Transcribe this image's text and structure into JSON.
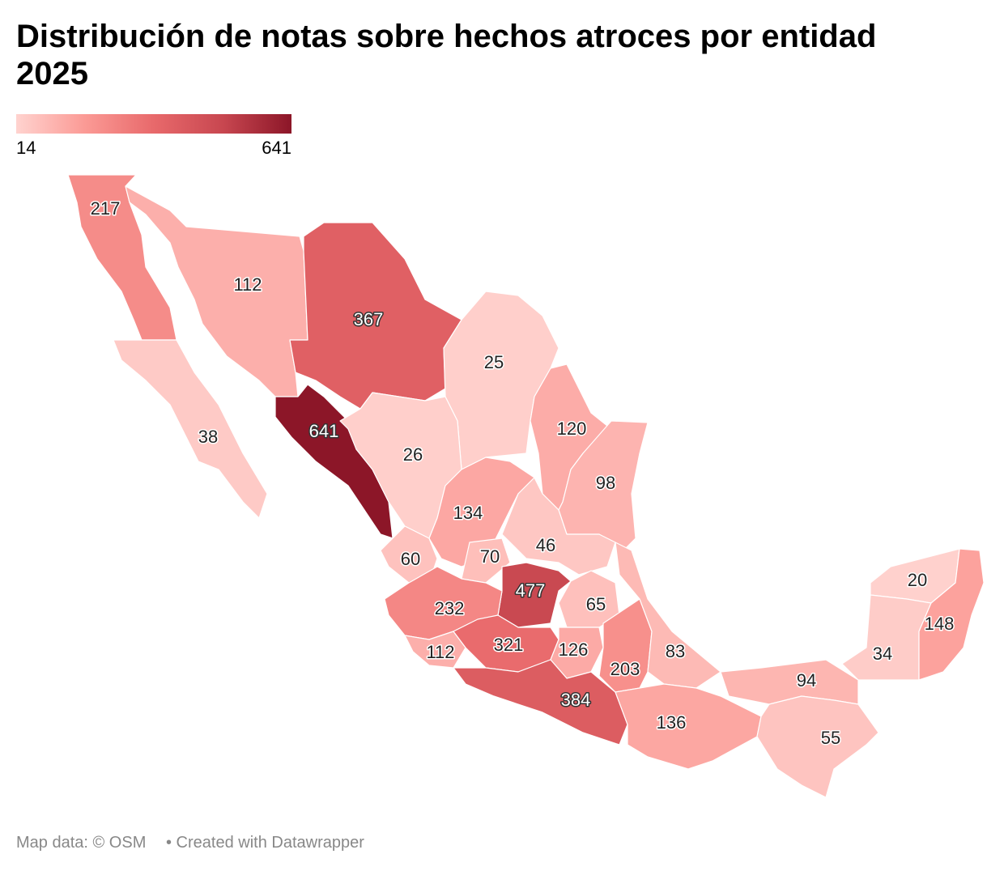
{
  "chart_data": {
    "type": "choropleth",
    "title": "Distribución de notas sobre hechos atroces por entidad 2025",
    "legend": {
      "min": 14,
      "max": 641
    },
    "colors": [
      "#ffd3cf",
      "#fb9a95",
      "#e8696b",
      "#c84750",
      "#8c1628"
    ],
    "values": [
      217,
      112,
      367,
      25,
      38,
      641,
      26,
      120,
      98,
      134,
      46,
      60,
      70,
      477,
      65,
      232,
      112,
      321,
      126,
      203,
      83,
      384,
      136,
      94,
      55,
      20,
      34,
      148
    ]
  },
  "footer": {
    "source": "Map data: © OSM",
    "credit": "• Created with Datawrapper"
  }
}
